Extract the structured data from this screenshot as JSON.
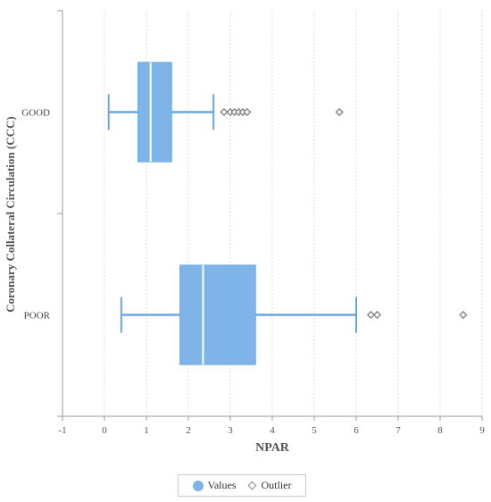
{
  "chart_data": {
    "type": "boxplot",
    "orientation": "horizontal",
    "xlabel": "NPAR",
    "ylabel": "Coronary Collateral Circulation (CCC)",
    "xlim": [
      -1,
      9
    ],
    "xticks": [
      -1,
      0,
      1,
      2,
      3,
      4,
      5,
      6,
      7,
      8,
      9
    ],
    "grid": true,
    "legend_position": "bottom",
    "legend": [
      "Values",
      "Outlier"
    ],
    "categories": [
      "GOOD",
      "POOR"
    ],
    "series": [
      {
        "category": "GOOD",
        "min": 0.1,
        "q1": 0.8,
        "median": 1.1,
        "q3": 1.6,
        "max": 2.6,
        "outliers": [
          2.85,
          3.0,
          3.1,
          3.2,
          3.3,
          3.4,
          5.6
        ]
      },
      {
        "category": "POOR",
        "min": 0.4,
        "q1": 1.8,
        "median": 2.35,
        "q3": 3.6,
        "max": 6.0,
        "outliers": [
          6.35,
          6.5,
          8.55
        ]
      }
    ],
    "colors": {
      "box": "#7fb4e8",
      "box_stroke": "#6aa5e0",
      "median": "#ffffff",
      "whisker": "#6aa5e0",
      "outlier": "#888888",
      "grid": "#dddddd",
      "axis": "#999999"
    }
  }
}
